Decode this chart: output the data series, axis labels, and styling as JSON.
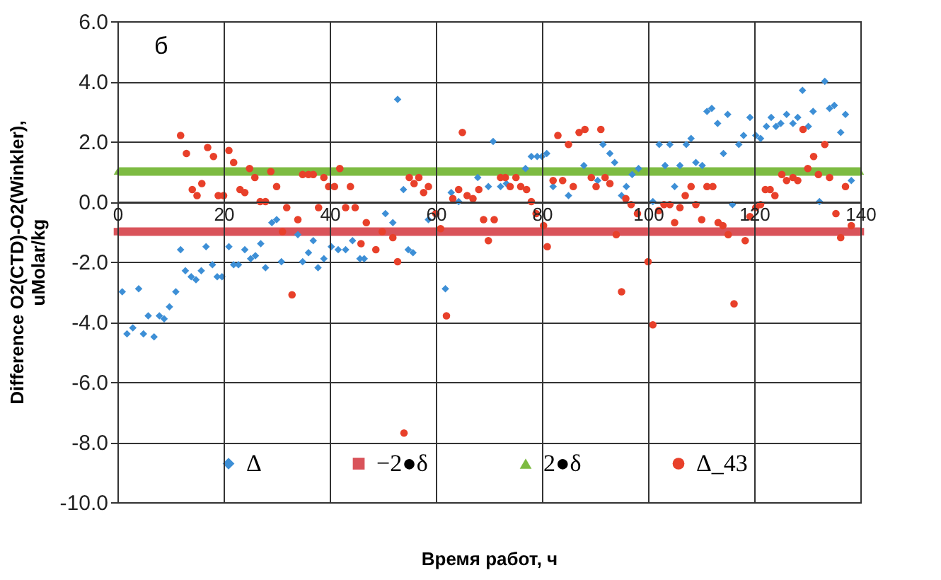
{
  "chart_data": {
    "type": "scatter",
    "xlabel": "Время работ, ч",
    "ylabel": "Difference O2(CTD)-O2(Winkler), uMolar/kg",
    "annotations": [
      "б"
    ],
    "xlim": [
      0,
      140
    ],
    "xticks": [
      0,
      20,
      40,
      60,
      80,
      100,
      120,
      140
    ],
    "ylim": [
      -10,
      6
    ],
    "yticks": [
      {
        "value": -10,
        "label": "-10.0"
      },
      {
        "value": -8,
        "label": "-8.0"
      },
      {
        "value": -6,
        "label": "-6.0"
      },
      {
        "value": -4,
        "label": "-4.0"
      },
      {
        "value": -2,
        "label": "-2.0"
      },
      {
        "value": 0,
        "label": "0.0"
      },
      {
        "value": 2,
        "label": "2.0"
      },
      {
        "value": 4,
        "label": "4.0"
      },
      {
        "value": 6,
        "label": "6.0"
      }
    ],
    "grid": true,
    "legend": "bottom",
    "series": [
      {
        "name": "Δ",
        "marker": "diamond",
        "color": "#3d8fd6",
        "x": [
          0.9,
          1.8,
          2.9,
          4.0,
          4.9,
          5.8,
          6.9,
          7.9,
          8.8,
          9.8,
          11.0,
          11.9,
          12.8,
          13.9,
          14.8,
          15.8,
          16.7,
          17.9,
          18.8,
          19.7,
          21.0,
          21.9,
          22.8,
          24.0,
          25.1,
          26.0,
          27.0,
          27.9,
          29.1,
          30.0,
          30.9,
          34.0,
          34.9,
          36.0,
          36.9,
          37.8,
          38.9,
          40.3,
          41.6,
          43.0,
          44.3,
          45.7,
          46.5,
          50.5,
          51.9,
          52.8,
          53.9,
          54.8,
          55.7,
          58.6,
          61.8,
          62.9,
          64.3,
          67.9,
          69.9,
          70.8,
          72.2,
          73.3,
          76.9,
          78.0,
          79.1,
          80.0,
          80.9,
          82.1,
          85.0,
          87.9,
          90.5,
          91.5,
          92.8,
          93.7,
          95.0,
          95.9,
          97.0,
          98.2,
          100.9,
          102.1,
          103.2,
          104.1,
          105.0,
          106.0,
          107.2,
          108.1,
          109.0,
          110.2,
          111.1,
          112.0,
          113.1,
          114.2,
          115.0,
          115.9,
          117.1,
          118.0,
          119.2,
          120.3,
          121.2,
          122.3,
          123.2,
          124.1,
          125.0,
          126.1,
          127.3,
          128.2,
          129.1,
          130.2,
          131.1,
          132.3,
          133.3,
          134.2,
          135.1,
          136.3,
          137.2,
          138.3
        ],
        "values": [
          -3.0,
          -4.4,
          -4.2,
          -2.9,
          -4.4,
          -3.8,
          -4.5,
          -3.8,
          -3.9,
          -3.5,
          -3.0,
          -1.6,
          -2.3,
          -2.5,
          -2.6,
          -2.3,
          -1.5,
          -2.1,
          -2.5,
          -2.5,
          -1.5,
          -2.1,
          -2.1,
          -1.6,
          -1.9,
          -1.8,
          -1.4,
          -2.2,
          -0.7,
          -0.6,
          -2.0,
          -1.1,
          -2.0,
          -1.7,
          -1.3,
          -2.2,
          -1.9,
          -1.5,
          -1.6,
          -1.6,
          -1.3,
          -1.9,
          -1.9,
          -0.4,
          -0.7,
          3.4,
          0.4,
          -1.6,
          -1.7,
          -0.6,
          -2.9,
          0.3,
          0.0,
          0.8,
          0.5,
          2.0,
          0.5,
          0.6,
          1.1,
          1.5,
          1.5,
          1.5,
          1.6,
          0.5,
          0.2,
          1.2,
          0.7,
          1.9,
          1.6,
          1.3,
          0.2,
          0.5,
          0.9,
          1.1,
          0.0,
          1.9,
          1.2,
          1.9,
          0.5,
          1.2,
          1.9,
          2.1,
          1.3,
          1.2,
          3.0,
          3.1,
          2.6,
          1.6,
          2.9,
          -0.1,
          1.9,
          2.2,
          2.8,
          2.2,
          2.1,
          2.5,
          2.8,
          2.5,
          2.6,
          2.9,
          2.6,
          2.8,
          3.7,
          2.5,
          3.0,
          0.0,
          4.0,
          3.1,
          3.2,
          2.3,
          2.9,
          0.7
        ]
      },
      {
        "name": "−2●δ",
        "type": "line",
        "marker": "square",
        "color": "#d9535a",
        "x": [
          0,
          140
        ],
        "values": [
          -1,
          -1
        ]
      },
      {
        "name": "2●δ",
        "type": "line",
        "marker": "triangle",
        "color": "#7dbb42",
        "x": [
          0,
          140
        ],
        "values": [
          1,
          1
        ]
      },
      {
        "name": "Δ_43",
        "marker": "circle",
        "color": "#e8402a",
        "x": [
          11.9,
          13.0,
          14.1,
          15.0,
          15.9,
          17.0,
          18.1,
          19.0,
          20.0,
          21.0,
          21.9,
          23.1,
          24.0,
          24.9,
          25.9,
          26.9,
          27.9,
          28.9,
          30.0,
          31.1,
          31.9,
          32.9,
          34.0,
          34.9,
          36.0,
          36.9,
          37.9,
          38.9,
          39.8,
          40.9,
          41.9,
          43.0,
          43.9,
          44.8,
          45.9,
          46.9,
          48.7,
          49.9,
          51.9,
          52.8,
          54.0,
          55.0,
          55.9,
          56.8,
          57.7,
          58.6,
          60.0,
          60.9,
          62.0,
          63.2,
          64.3,
          65.0,
          65.9,
          67.0,
          68.1,
          69.0,
          69.9,
          71.0,
          72.2,
          73.1,
          74.0,
          75.1,
          76.0,
          77.1,
          78.0,
          78.9,
          80.3,
          81.0,
          82.1,
          83.0,
          83.9,
          85.0,
          85.9,
          87.0,
          88.1,
          89.3,
          90.2,
          91.1,
          91.9,
          92.8,
          94.0,
          95.0,
          95.8,
          96.8,
          98.0,
          100.0,
          100.9,
          102.0,
          103.0,
          104.1,
          105.0,
          106.0,
          107.0,
          108.1,
          109.0,
          110.1,
          111.1,
          112.2,
          113.2,
          114.1,
          115.1,
          116.2,
          118.3,
          119.2,
          120.3,
          121.2,
          122.1,
          123.0,
          123.9,
          125.2,
          126.1,
          127.3,
          128.2,
          129.2,
          130.1,
          131.2,
          132.1,
          133.3,
          134.2,
          135.4,
          136.3,
          137.2,
          138.3
        ],
        "values": [
          2.2,
          1.6,
          0.4,
          0.2,
          0.6,
          1.8,
          1.5,
          0.2,
          0.2,
          1.7,
          1.3,
          0.4,
          0.3,
          1.1,
          0.8,
          0.0,
          0.0,
          1.0,
          0.5,
          -1.0,
          -0.2,
          -3.1,
          -0.6,
          0.9,
          0.9,
          0.9,
          -0.2,
          0.8,
          0.5,
          0.5,
          1.1,
          -0.2,
          0.5,
          -0.2,
          -1.4,
          -0.7,
          -1.6,
          -1.0,
          -1.2,
          -2.0,
          -7.7,
          0.8,
          0.6,
          0.8,
          0.3,
          0.5,
          -0.4,
          -0.9,
          -3.8,
          0.1,
          0.4,
          2.3,
          0.2,
          0.1,
          0.4,
          -0.6,
          -1.3,
          -0.6,
          0.8,
          0.8,
          0.5,
          0.8,
          0.5,
          0.4,
          0.0,
          -0.4,
          -0.8,
          -1.5,
          0.7,
          2.2,
          0.7,
          1.9,
          0.5,
          2.3,
          2.4,
          0.8,
          0.5,
          2.4,
          0.8,
          0.6,
          -1.1,
          -3.0,
          0.1,
          -0.1,
          -0.4,
          -2.0,
          -4.1,
          -0.3,
          -0.1,
          -0.1,
          -0.7,
          -0.2,
          0.2,
          0.5,
          -0.1,
          -0.6,
          0.5,
          0.5,
          -0.7,
          -0.8,
          -1.1,
          -3.4,
          -1.3,
          -0.5,
          -0.2,
          -0.1,
          0.4,
          0.4,
          0.2,
          0.9,
          0.7,
          0.8,
          0.7,
          2.4,
          1.1,
          1.5,
          0.9,
          1.9,
          0.8,
          -0.4,
          -1.2,
          0.5,
          -0.8
        ]
      }
    ]
  }
}
